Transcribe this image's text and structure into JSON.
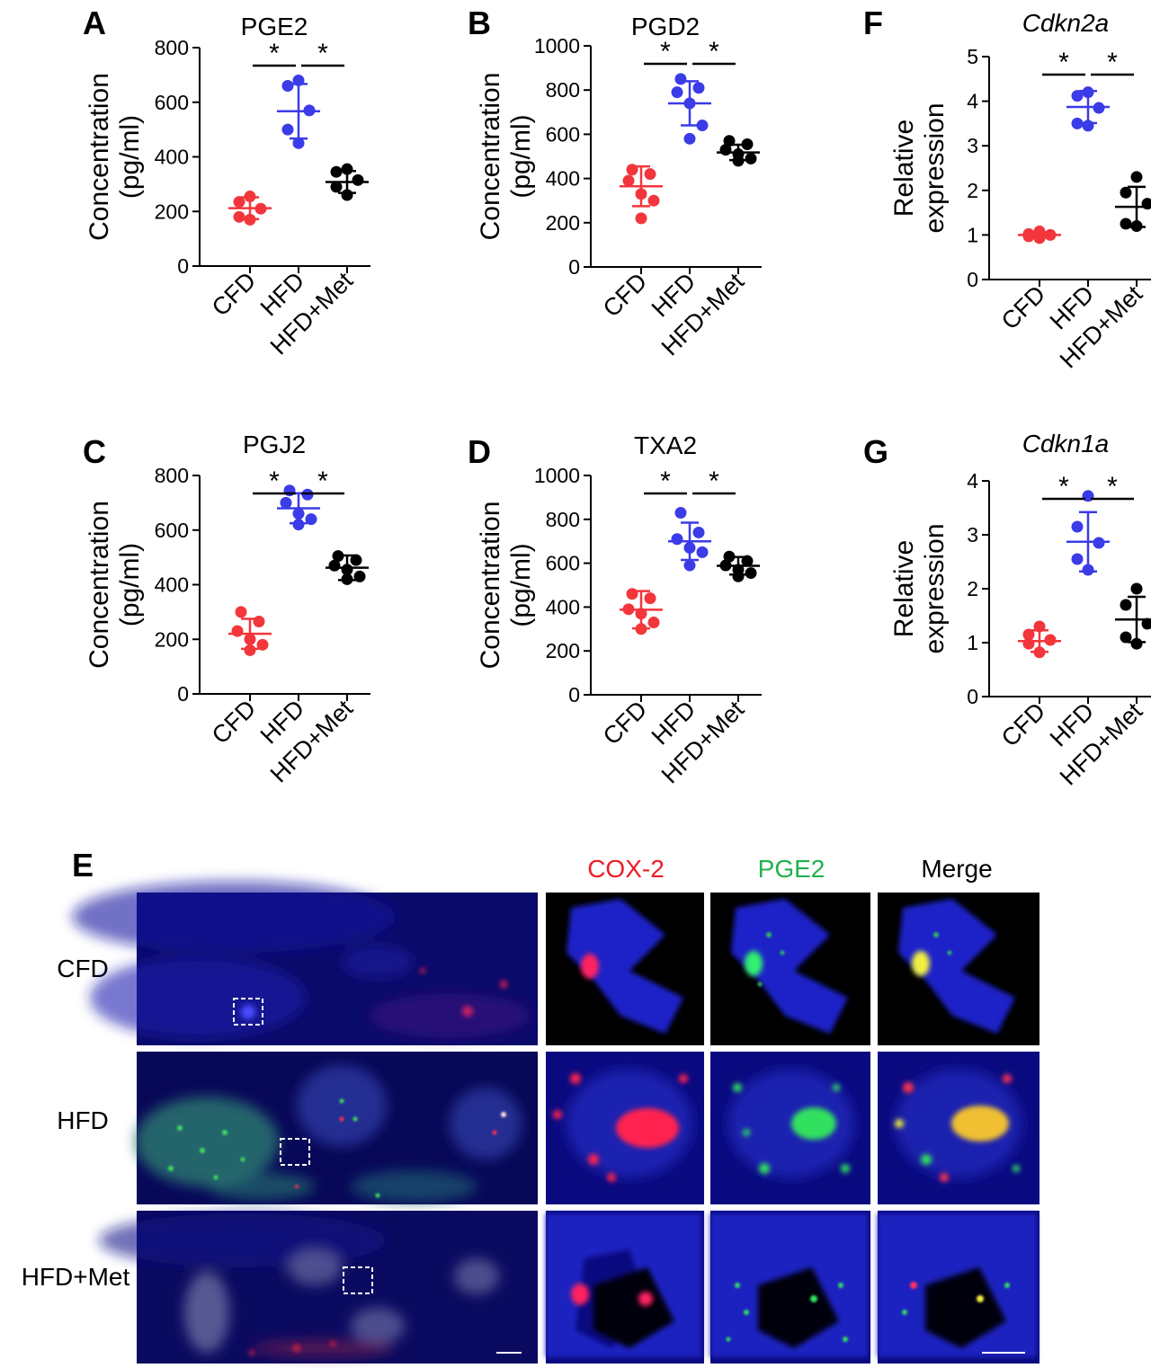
{
  "panel_e": {
    "label": "E",
    "headers": [
      {
        "text": "COX-2",
        "color": "#ee1c25"
      },
      {
        "text": "PGE2",
        "color": "#22b14c"
      },
      {
        "text": "Merge",
        "color": "#000000"
      }
    ],
    "rows": [
      "CFD",
      "HFD",
      "HFD+Met"
    ]
  },
  "colors": {
    "CFD": "#f2363c",
    "HFD": "#3b3be8",
    "HFD+Met": "#000000"
  },
  "chart_data": [
    {
      "panel": "A",
      "type": "scatter",
      "title": "PGE2",
      "italic_title": false,
      "ylabel": [
        "Concentration",
        "(pg/ml)"
      ],
      "ylim": [
        0,
        800
      ],
      "yticks": [
        0,
        200,
        400,
        600,
        800
      ],
      "categories": [
        "CFD",
        "HFD",
        "HFD+Met"
      ],
      "series": [
        {
          "category": "CFD",
          "points": [
            255,
            235,
            210,
            180,
            170
          ],
          "mean": 212,
          "sd": 40
        },
        {
          "category": "HFD",
          "points": [
            680,
            660,
            570,
            500,
            450
          ],
          "mean": 567,
          "sd": 100
        },
        {
          "category": "HFD+Met",
          "points": [
            355,
            345,
            315,
            290,
            260
          ],
          "mean": 308,
          "sd": 40
        }
      ],
      "significance": [
        {
          "from": 0,
          "to": 1,
          "label": "*"
        },
        {
          "from": 1,
          "to": 2,
          "label": "*"
        }
      ]
    },
    {
      "panel": "B",
      "type": "scatter",
      "title": "PGD2",
      "italic_title": false,
      "ylabel": [
        "Concentration",
        "(pg/ml)"
      ],
      "ylim": [
        0,
        1000
      ],
      "yticks": [
        0,
        200,
        400,
        600,
        800,
        1000
      ],
      "categories": [
        "CFD",
        "HFD",
        "HFD+Met"
      ],
      "series": [
        {
          "category": "CFD",
          "points": [
            440,
            420,
            390,
            330,
            300,
            220
          ],
          "mean": 365,
          "sd": 90
        },
        {
          "category": "HFD",
          "points": [
            850,
            810,
            790,
            740,
            640,
            580
          ],
          "mean": 740,
          "sd": 100
        },
        {
          "category": "HFD+Met",
          "points": [
            570,
            555,
            530,
            510,
            490,
            480
          ],
          "mean": 518,
          "sd": 35
        }
      ],
      "significance": [
        {
          "from": 0,
          "to": 1,
          "label": "*"
        },
        {
          "from": 1,
          "to": 2,
          "label": "*"
        }
      ]
    },
    {
      "panel": "F",
      "type": "scatter",
      "title": "Cdkn2a",
      "italic_title": true,
      "ylabel": [
        "Relative",
        "expression"
      ],
      "ylim": [
        0,
        5
      ],
      "yticks": [
        0,
        1,
        2,
        3,
        4,
        5
      ],
      "categories": [
        "CFD",
        "HFD",
        "HFD+Met"
      ],
      "series": [
        {
          "category": "CFD",
          "points": [
            1.08,
            1.02,
            1.0,
            0.97,
            0.93
          ],
          "mean": 1.0,
          "sd": 0.06
        },
        {
          "category": "HFD",
          "points": [
            4.2,
            4.12,
            3.85,
            3.5,
            3.45
          ],
          "mean": 3.87,
          "sd": 0.36
        },
        {
          "category": "HFD+Met",
          "points": [
            2.3,
            1.95,
            1.7,
            1.25,
            1.2
          ],
          "mean": 1.63,
          "sd": 0.45
        }
      ],
      "significance": [
        {
          "from": 0,
          "to": 1,
          "label": "*"
        },
        {
          "from": 1,
          "to": 2,
          "label": "*"
        }
      ]
    },
    {
      "panel": "C",
      "type": "scatter",
      "title": "PGJ2",
      "italic_title": false,
      "ylabel": [
        "Concentration",
        "(pg/ml)"
      ],
      "ylim": [
        0,
        800
      ],
      "yticks": [
        0,
        200,
        400,
        600,
        800
      ],
      "categories": [
        "CFD",
        "HFD",
        "HFD+Met"
      ],
      "series": [
        {
          "category": "CFD",
          "points": [
            300,
            265,
            230,
            200,
            180,
            160
          ],
          "mean": 220,
          "sd": 55
        },
        {
          "category": "HFD",
          "points": [
            745,
            730,
            700,
            660,
            640,
            620
          ],
          "mean": 680,
          "sd": 55
        },
        {
          "category": "HFD+Met",
          "points": [
            505,
            490,
            470,
            455,
            430,
            420
          ],
          "mean": 462,
          "sd": 45
        }
      ],
      "significance": [
        {
          "from": 0,
          "to": 1,
          "label": "*"
        },
        {
          "from": 1,
          "to": 2,
          "label": "*"
        }
      ]
    },
    {
      "panel": "D",
      "type": "scatter",
      "title": "TXA2",
      "italic_title": false,
      "ylabel": [
        "Concentration",
        "(pg/ml)"
      ],
      "ylim": [
        0,
        1000
      ],
      "yticks": [
        0,
        200,
        400,
        600,
        800,
        1000
      ],
      "categories": [
        "CFD",
        "HFD",
        "HFD+Met"
      ],
      "series": [
        {
          "category": "CFD",
          "points": [
            460,
            440,
            390,
            370,
            330,
            300
          ],
          "mean": 388,
          "sd": 85
        },
        {
          "category": "HFD",
          "points": [
            830,
            740,
            710,
            670,
            650,
            590
          ],
          "mean": 700,
          "sd": 85
        },
        {
          "category": "HFD+Met",
          "points": [
            630,
            610,
            590,
            570,
            555,
            540
          ],
          "mean": 588,
          "sd": 40
        }
      ],
      "significance": [
        {
          "from": 0,
          "to": 1,
          "label": "*"
        },
        {
          "from": 1,
          "to": 2,
          "label": "*"
        }
      ]
    },
    {
      "panel": "G",
      "type": "scatter",
      "title": "Cdkn1a",
      "italic_title": true,
      "ylabel": [
        "Relative",
        "expression"
      ],
      "ylim": [
        0,
        4
      ],
      "yticks": [
        0,
        1,
        2,
        3,
        4
      ],
      "categories": [
        "CFD",
        "HFD",
        "HFD+Met"
      ],
      "series": [
        {
          "category": "CFD",
          "points": [
            1.3,
            1.15,
            1.05,
            0.98,
            0.82
          ],
          "mean": 1.03,
          "sd": 0.2
        },
        {
          "category": "HFD",
          "points": [
            3.72,
            3.15,
            2.85,
            2.55,
            2.35
          ],
          "mean": 2.87,
          "sd": 0.55
        },
        {
          "category": "HFD+Met",
          "points": [
            2.0,
            1.7,
            1.35,
            1.1,
            0.98
          ],
          "mean": 1.43,
          "sd": 0.42
        }
      ],
      "significance": [
        {
          "from": 0,
          "to": 1,
          "label": "*"
        },
        {
          "from": 1,
          "to": 2,
          "label": "*"
        }
      ]
    }
  ]
}
